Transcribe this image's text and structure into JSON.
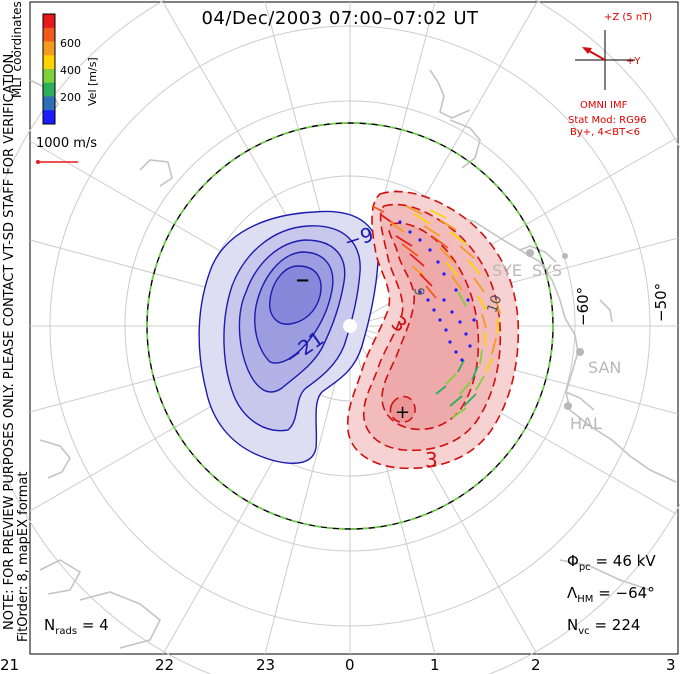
{
  "title": "04/Dec/2003 07:00–07:02 UT",
  "colorbar": {
    "label": "Vel [m/s]",
    "ticks": [
      "600",
      "400",
      "200"
    ],
    "colors": [
      "#e8191b",
      "#f05a1e",
      "#f59a21",
      "#ffd300",
      "#7fd13b",
      "#2eae5a",
      "#2f6fb8",
      "#1c1cff"
    ]
  },
  "coordinates_label": "MLT coordinates",
  "velocity_scale_label": "1000 m/s",
  "imf": {
    "bz_label": "+Z (5 nT)",
    "by_label": "+Y",
    "source": "OMNI IMF",
    "stat_mod": "Stat Mod: RG96",
    "condition": "By+, 4<BT<6"
  },
  "note_text": "NOTE: FOR PREVIEW PURPOSES ONLY. PLEASE CONTACT VT-SD STAFF FOR VERIFICATION.",
  "fitorder_text": "FitOrder: 8, mapEX format",
  "stats": {
    "phi_pc": {
      "symbol": "Φ",
      "sub": "pc",
      "value": "= 46 kV"
    },
    "lambda_hm": {
      "symbol": "Λ",
      "sub": "HM",
      "value": "= −64°"
    },
    "n_vc": {
      "symbol": "N",
      "sub": "vc",
      "value": "= 224"
    },
    "n_rads": {
      "symbol": "N",
      "sub": "rads",
      "value": "= 4"
    }
  },
  "mlt_labels": [
    "21",
    "22",
    "23",
    "0",
    "1",
    "2",
    "3"
  ],
  "latitude_labels": [
    "−60°",
    "−50°"
  ],
  "radar_labels": [
    "SYE",
    "SYS",
    "SAN",
    "HAL"
  ],
  "contour_labels": [
    "−9",
    "−21",
    "3",
    "3"
  ],
  "contour_values_partial": [
    "9",
    "10"
  ],
  "potential_markers": [
    "−",
    "+"
  ],
  "colors": {
    "negative_contour": "#1b1bb0",
    "positive_contour": "#d01010",
    "negative_fill": "#6e6ee0",
    "positive_fill": "#f0a0a0",
    "hmb": "#6fcf4a",
    "grid": "#cccccc"
  }
}
